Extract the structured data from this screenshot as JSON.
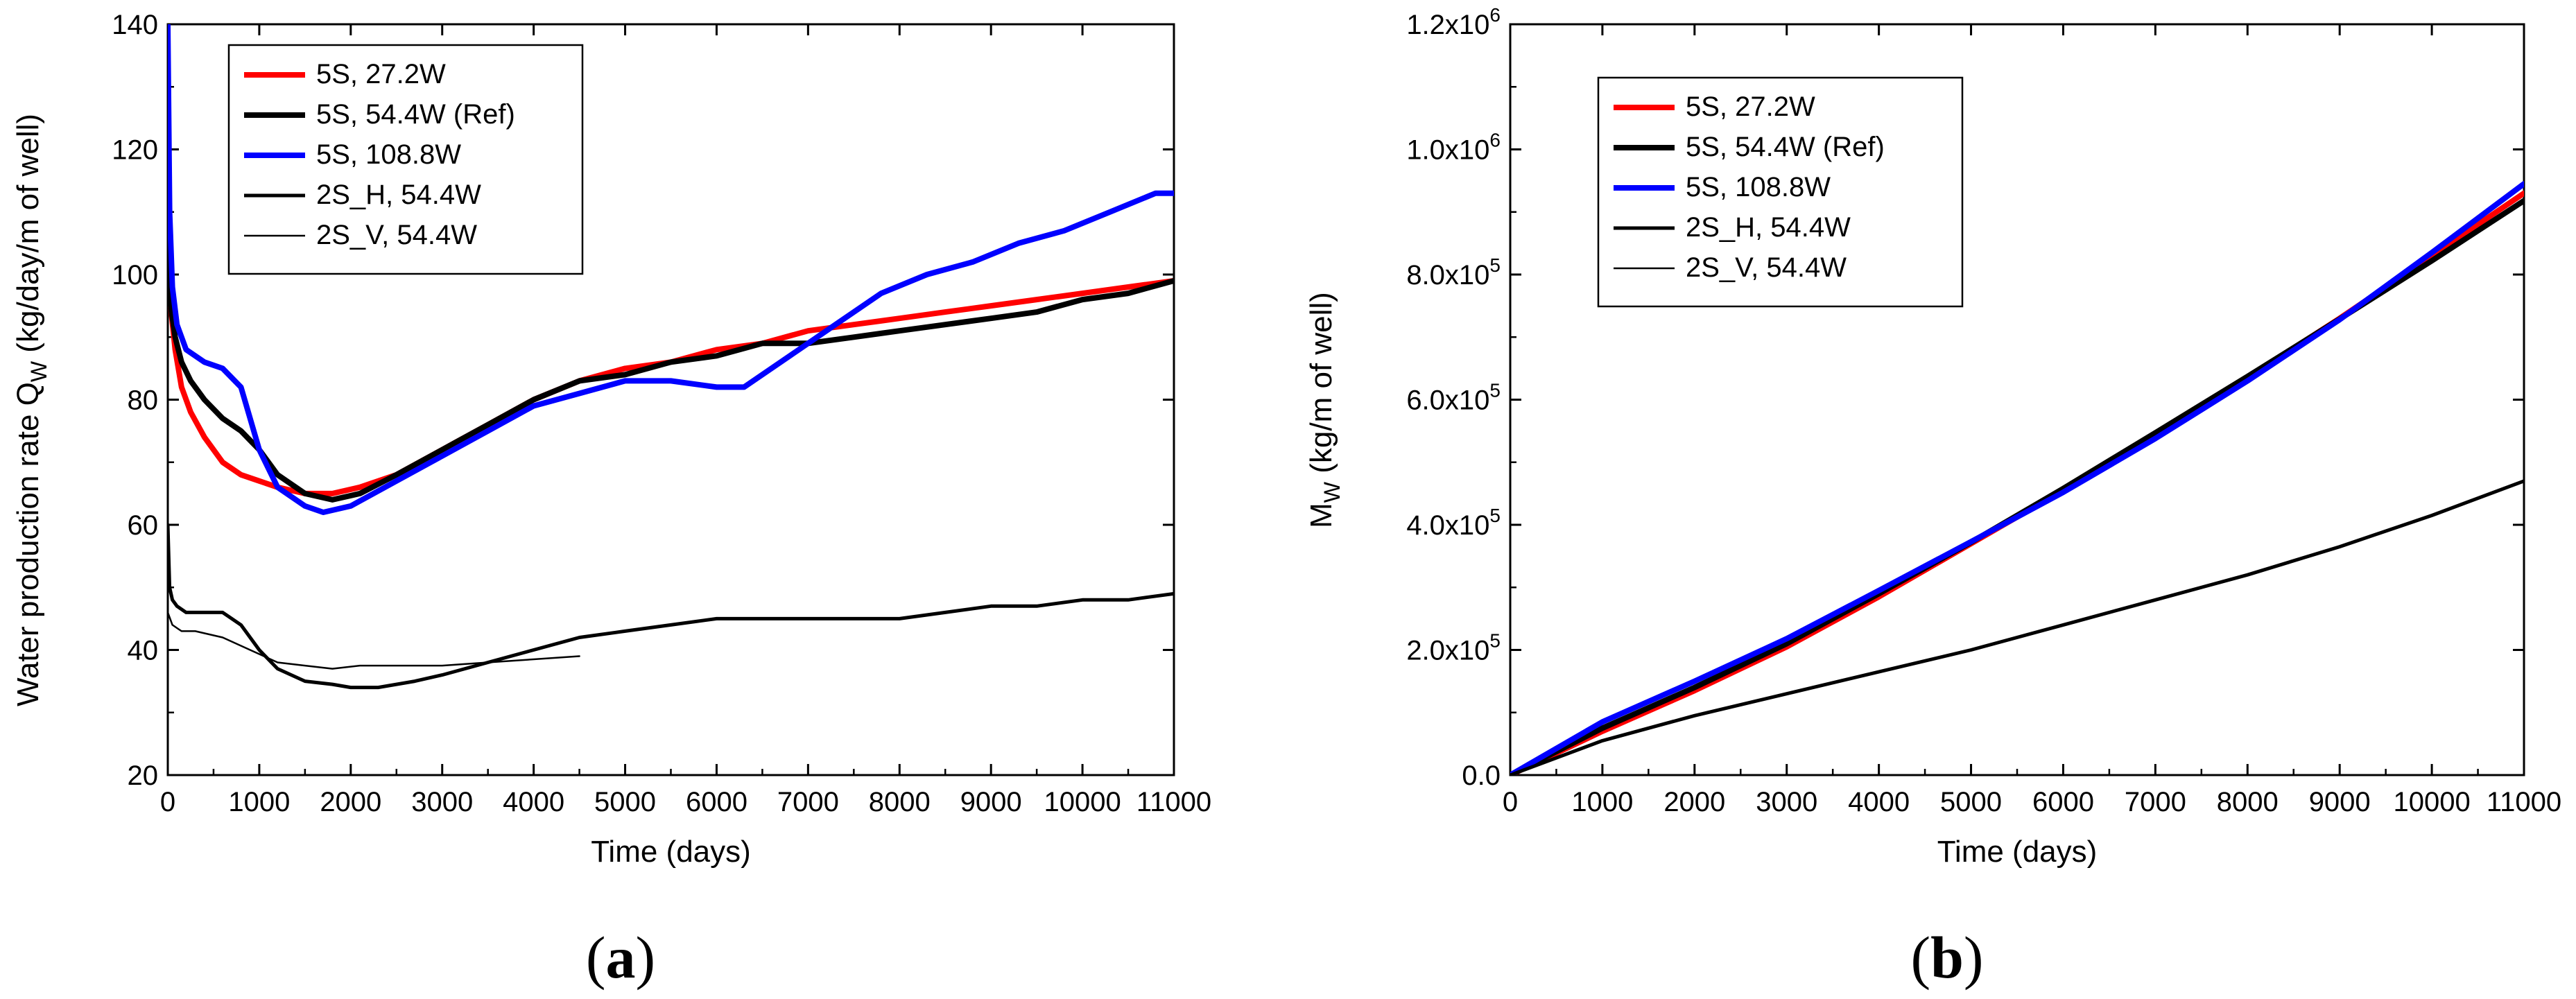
{
  "chart_data": [
    {
      "panel": "(a)",
      "panel_label_open": "(",
      "panel_label_letter": "a",
      "panel_label_close": ")",
      "type": "line",
      "xlabel": "Time (days)",
      "ylabel": "Water production rate Q",
      "ylabel_sub": "W",
      "ylabel_tail": " (kg/day/m of well)",
      "xlim": [
        0,
        11000
      ],
      "ylim": [
        20,
        140
      ],
      "xticks": [
        0,
        1000,
        2000,
        3000,
        4000,
        5000,
        6000,
        7000,
        8000,
        9000,
        10000,
        11000
      ],
      "yticks": [
        20,
        40,
        60,
        80,
        100,
        120,
        140
      ],
      "xtick_labels": [
        "0",
        "1000",
        "2000",
        "3000",
        "4000",
        "5000",
        "6000",
        "7000",
        "8000",
        "9000",
        "10000",
        "11000"
      ],
      "ytick_labels": [
        "20",
        "40",
        "60",
        "80",
        "100",
        "120",
        "140"
      ],
      "legend_position": "top-left",
      "series": [
        {
          "name": "5S, 27.2W",
          "color": "#ff0000",
          "style": "thick",
          "x": [
            0,
            30,
            80,
            150,
            250,
            400,
            600,
            800,
            1000,
            1200,
            1500,
            1800,
            2100,
            2500,
            3000,
            3500,
            4000,
            4500,
            5000,
            5500,
            6000,
            6500,
            7000,
            7500,
            8000,
            8500,
            9000,
            9500,
            10000,
            10500,
            11000
          ],
          "y": [
            100,
            95,
            88,
            82,
            78,
            74,
            70,
            68,
            67,
            66,
            65,
            65,
            66,
            68,
            72,
            76,
            80,
            83,
            85,
            86,
            88,
            89,
            91,
            92,
            93,
            94,
            95,
            96,
            97,
            98,
            99
          ]
        },
        {
          "name": "5S, 54.4W (Ref)",
          "color": "#000000",
          "style": "thick",
          "x": [
            0,
            30,
            80,
            150,
            250,
            400,
            600,
            800,
            1000,
            1200,
            1500,
            1800,
            2100,
            2500,
            3000,
            3500,
            4000,
            4500,
            5000,
            5500,
            6000,
            6500,
            7000,
            7500,
            8000,
            8500,
            9000,
            9500,
            10000,
            10500,
            11000
          ],
          "y": [
            105,
            95,
            90,
            86,
            83,
            80,
            77,
            75,
            72,
            68,
            65,
            64,
            65,
            68,
            72,
            76,
            80,
            83,
            84,
            86,
            87,
            89,
            89,
            90,
            91,
            92,
            93,
            94,
            96,
            97,
            99
          ]
        },
        {
          "name": "5S, 108.8W",
          "color": "#0000ff",
          "style": "thick",
          "x": [
            0,
            20,
            50,
            100,
            200,
            400,
            600,
            800,
            1000,
            1200,
            1500,
            1700,
            2000,
            2500,
            3000,
            3500,
            4000,
            4500,
            5000,
            5500,
            6000,
            6300,
            6800,
            7300,
            7800,
            8300,
            8800,
            9300,
            9800,
            10300,
            10800,
            11000
          ],
          "y": [
            140,
            110,
            98,
            92,
            88,
            86,
            85,
            82,
            72,
            66,
            63,
            62,
            63,
            67,
            71,
            75,
            79,
            81,
            83,
            83,
            82,
            82,
            87,
            92,
            97,
            100,
            102,
            105,
            107,
            110,
            113,
            113
          ]
        },
        {
          "name": "2S_H, 54.4W",
          "color": "#000000",
          "style": "medium",
          "x": [
            0,
            20,
            50,
            100,
            200,
            400,
            600,
            800,
            1000,
            1200,
            1500,
            1800,
            2000,
            2300,
            2700,
            3000,
            3500,
            4000,
            4500,
            5000,
            5500,
            6000,
            6500,
            7000,
            7500,
            8000,
            8500,
            9000,
            9500,
            10000,
            10500,
            11000
          ],
          "y": [
            60,
            50,
            48,
            47,
            46,
            46,
            46,
            44,
            40,
            37,
            35,
            34.5,
            34,
            34,
            35,
            36,
            38,
            40,
            42,
            43,
            44,
            45,
            45,
            45,
            45,
            45,
            46,
            47,
            47,
            48,
            48,
            49
          ]
        },
        {
          "name": "2S_V, 54.4W",
          "color": "#000000",
          "style": "thin",
          "x": [
            0,
            50,
            150,
            300,
            600,
            900,
            1200,
            1500,
            1800,
            2100,
            2500,
            3000,
            3500,
            4000,
            4500
          ],
          "y": [
            46,
            44,
            43,
            43,
            42,
            40,
            38,
            37.5,
            37,
            37.5,
            37.5,
            37.5,
            38,
            38.5,
            39
          ]
        }
      ]
    },
    {
      "panel": "(b)",
      "panel_label_open": "(",
      "panel_label_letter": "b",
      "panel_label_close": ")",
      "type": "line",
      "xlabel": "Time (days)",
      "ylabel": "M",
      "ylabel_sub": "W",
      "ylabel_tail": " (kg/m of well)",
      "xlim": [
        0,
        11000
      ],
      "ylim": [
        0,
        1200000
      ],
      "xticks": [
        0,
        1000,
        2000,
        3000,
        4000,
        5000,
        6000,
        7000,
        8000,
        9000,
        10000,
        11000
      ],
      "yticks": [
        0,
        200000,
        400000,
        600000,
        800000,
        1000000,
        1200000
      ],
      "xtick_labels": [
        "0",
        "1000",
        "2000",
        "3000",
        "4000",
        "5000",
        "6000",
        "7000",
        "8000",
        "9000",
        "10000",
        "11000"
      ],
      "ytick_labels": [
        {
          "base": "0.0",
          "exp": ""
        },
        {
          "base": "2.0x10",
          "exp": "5"
        },
        {
          "base": "4.0x10",
          "exp": "5"
        },
        {
          "base": "6.0x10",
          "exp": "5"
        },
        {
          "base": "8.0x10",
          "exp": "5"
        },
        {
          "base": "1.0x10",
          "exp": "6"
        },
        {
          "base": "1.2x10",
          "exp": "6"
        }
      ],
      "legend_position": "top-left",
      "series": [
        {
          "name": "5S, 27.2W",
          "color": "#ff0000",
          "style": "thick",
          "x": [
            0,
            1000,
            2000,
            3000,
            4000,
            5000,
            6000,
            7000,
            8000,
            9000,
            10000,
            11000
          ],
          "y": [
            0,
            70000,
            135000,
            205000,
            285000,
            370000,
            455000,
            545000,
            635000,
            730000,
            830000,
            930000
          ]
        },
        {
          "name": "5S, 54.4W (Ref)",
          "color": "#000000",
          "style": "thick",
          "x": [
            0,
            1000,
            2000,
            3000,
            4000,
            5000,
            6000,
            7000,
            8000,
            9000,
            10000,
            11000
          ],
          "y": [
            0,
            75000,
            140000,
            210000,
            290000,
            372000,
            458000,
            547000,
            637000,
            729000,
            822000,
            918000
          ]
        },
        {
          "name": "5S, 108.8W",
          "color": "#0000ff",
          "style": "thick",
          "x": [
            0,
            1000,
            2000,
            3000,
            4000,
            5000,
            6000,
            7000,
            8000,
            9000,
            10000,
            11000
          ],
          "y": [
            0,
            85000,
            150000,
            218000,
            295000,
            373000,
            452000,
            538000,
            630000,
            728000,
            835000,
            945000
          ]
        },
        {
          "name": "2S_H, 54.4W",
          "color": "#000000",
          "style": "medium",
          "x": [
            0,
            1000,
            2000,
            3000,
            4000,
            5000,
            6000,
            7000,
            8000,
            9000,
            10000,
            11000
          ],
          "y": [
            0,
            55000,
            95000,
            130000,
            165000,
            200000,
            240000,
            280000,
            320000,
            365000,
            415000,
            470000
          ]
        },
        {
          "name": "2S_V, 54.4W",
          "color": "#000000",
          "style": "thin",
          "x": [],
          "y": []
        }
      ]
    }
  ]
}
